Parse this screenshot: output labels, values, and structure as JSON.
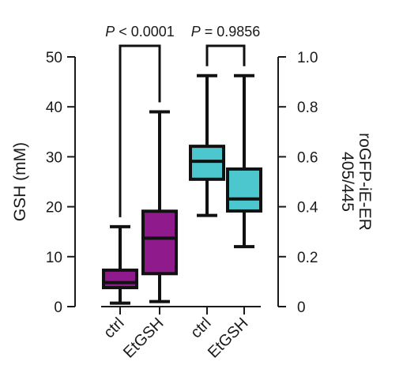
{
  "chart_data": {
    "type": "box",
    "categories": [
      "ctrl",
      "EtGSH",
      "ctrl",
      "EtGSH"
    ],
    "left_axis": {
      "label": "GSH (mM)",
      "ticks": [
        "0",
        "10",
        "20",
        "30",
        "40",
        "50"
      ],
      "range": [
        0,
        50
      ]
    },
    "right_axis": {
      "label_line1": "roGFP-iE-ER",
      "label_line2": "405/445",
      "ticks": [
        "0",
        "0.2",
        "0.4",
        "0.6",
        "0.8",
        "1.0"
      ],
      "range": [
        0,
        1.0
      ]
    },
    "series": [
      {
        "axis": "left",
        "color": "#8e1a8c",
        "boxes": [
          {
            "category": "ctrl",
            "min": 0.7,
            "q1": 3.8,
            "median": 4.8,
            "q3": 7.3,
            "max": 16.0
          },
          {
            "category": "EtGSH",
            "min": 1.0,
            "q1": 6.6,
            "median": 13.7,
            "q3": 19.1,
            "max": 39.0
          }
        ]
      },
      {
        "axis": "right",
        "color": "#4cc7cd",
        "boxes": [
          {
            "category": "ctrl",
            "min": 0.365,
            "q1": 0.51,
            "median": 0.582,
            "q3": 0.642,
            "max": 0.925
          },
          {
            "category": "EtGSH",
            "min": 0.24,
            "q1": 0.383,
            "median": 0.431,
            "q3": 0.551,
            "max": 0.925
          }
        ]
      }
    ],
    "comparisons": [
      {
        "label": "P < 0.0001"
      },
      {
        "label": "P = 0.9856"
      }
    ]
  }
}
